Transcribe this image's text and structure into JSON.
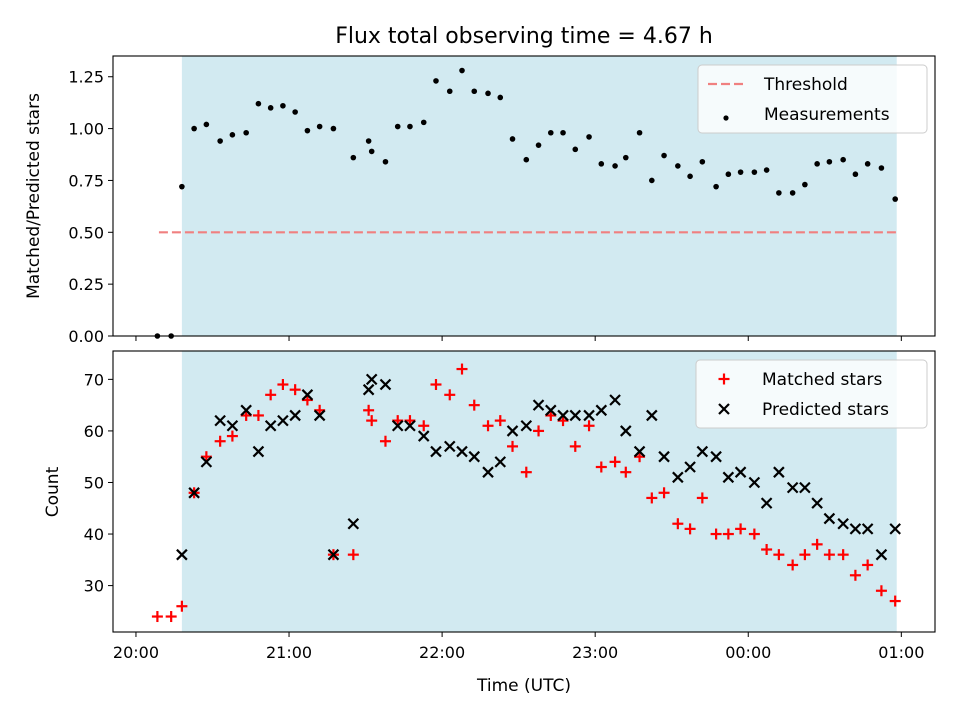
{
  "chart_data": {
    "type": "scatter",
    "title": "Flux total observing time = 4.67 h",
    "xlabel": "Time (UTC)",
    "x_units": "hours after 20:00 UTC",
    "xlim": [
      -0.15,
      5.22
    ],
    "x_ticks": [
      {
        "value": 0,
        "label": "20:00"
      },
      {
        "value": 1,
        "label": "21:00"
      },
      {
        "value": 2,
        "label": "22:00"
      },
      {
        "value": 3,
        "label": "23:00"
      },
      {
        "value": 4,
        "label": "00:00"
      },
      {
        "value": 5,
        "label": "01:00"
      }
    ],
    "observing_window": {
      "start": 0.3,
      "end": 4.97,
      "color": "#add8e6"
    },
    "panels": [
      {
        "ylabel": "Matched/Predicted stars",
        "ylim": [
          0,
          1.35
        ],
        "y_ticks": [
          "0.00",
          "0.25",
          "0.50",
          "0.75",
          "1.00",
          "1.25"
        ],
        "legend": {
          "placement": "top-right",
          "entries": [
            "Threshold",
            "Measurements"
          ]
        },
        "series": [
          {
            "name": "Threshold",
            "kind": "dashed-line",
            "color": "#f08080",
            "x": [
              0.15,
              4.97
            ],
            "y": [
              0.5,
              0.5
            ]
          },
          {
            "name": "Measurements",
            "kind": "dot",
            "color": "#000000",
            "x": [
              0.14,
              0.23,
              0.3,
              0.38,
              0.46,
              0.55,
              0.63,
              0.72,
              0.8,
              0.88,
              0.96,
              1.04,
              1.12,
              1.2,
              1.29,
              1.42,
              1.52,
              1.54,
              1.63,
              1.71,
              1.79,
              1.88,
              1.96,
              2.05,
              2.13,
              2.21,
              2.3,
              2.38,
              2.46,
              2.55,
              2.63,
              2.71,
              2.79,
              2.87,
              2.96,
              3.04,
              3.13,
              3.2,
              3.29,
              3.37,
              3.45,
              3.54,
              3.62,
              3.7,
              3.79,
              3.87,
              3.95,
              4.04,
              4.12,
              4.2,
              4.29,
              4.37,
              4.45,
              4.53,
              4.62,
              4.7,
              4.78,
              4.87,
              4.96
            ],
            "y": [
              0.0,
              0.0,
              0.72,
              1.0,
              1.02,
              0.94,
              0.97,
              0.98,
              1.12,
              1.1,
              1.11,
              1.08,
              0.99,
              1.01,
              1.0,
              0.86,
              0.94,
              0.89,
              0.84,
              1.01,
              1.01,
              1.03,
              1.23,
              1.18,
              1.28,
              1.18,
              1.17,
              1.15,
              0.95,
              0.85,
              0.92,
              0.98,
              0.98,
              0.9,
              0.96,
              0.83,
              0.82,
              0.86,
              0.98,
              0.75,
              0.87,
              0.82,
              0.77,
              0.84,
              0.72,
              0.78,
              0.79,
              0.79,
              0.8,
              0.69,
              0.69,
              0.73,
              0.83,
              0.84,
              0.85,
              0.78,
              0.83,
              0.81,
              0.66
            ]
          }
        ]
      },
      {
        "ylabel": "Count",
        "ylim": [
          21,
          75.5
        ],
        "y_ticks": [
          "30",
          "40",
          "50",
          "60",
          "70"
        ],
        "legend": {
          "placement": "top-right",
          "entries": [
            "Matched stars",
            "Predicted stars"
          ]
        },
        "series": [
          {
            "name": "Matched stars",
            "kind": "plus",
            "color": "#ff0000",
            "x": [
              0.14,
              0.23,
              0.3,
              0.38,
              0.46,
              0.55,
              0.63,
              0.72,
              0.8,
              0.88,
              0.96,
              1.04,
              1.12,
              1.2,
              1.29,
              1.42,
              1.52,
              1.54,
              1.63,
              1.71,
              1.79,
              1.88,
              1.96,
              2.05,
              2.13,
              2.21,
              2.3,
              2.38,
              2.46,
              2.55,
              2.63,
              2.71,
              2.79,
              2.87,
              2.96,
              3.04,
              3.13,
              3.2,
              3.29,
              3.37,
              3.45,
              3.54,
              3.62,
              3.7,
              3.79,
              3.87,
              3.95,
              4.04,
              4.12,
              4.2,
              4.29,
              4.37,
              4.45,
              4.53,
              4.62,
              4.7,
              4.78,
              4.87,
              4.96
            ],
            "y": [
              24,
              24,
              26,
              48,
              55,
              58,
              59,
              63,
              63,
              67,
              69,
              68,
              66,
              64,
              36,
              36,
              64,
              62,
              58,
              62,
              62,
              61,
              69,
              67,
              72,
              65,
              61,
              62,
              57,
              52,
              60,
              63,
              62,
              57,
              61,
              53,
              54,
              52,
              55,
              47,
              48,
              42,
              41,
              47,
              40,
              40,
              41,
              40,
              37,
              36,
              34,
              36,
              38,
              36,
              36,
              32,
              34,
              29,
              27
            ]
          },
          {
            "name": "Predicted stars",
            "kind": "x",
            "color": "#000000",
            "x": [
              0.3,
              0.38,
              0.46,
              0.55,
              0.63,
              0.72,
              0.8,
              0.88,
              0.96,
              1.04,
              1.12,
              1.2,
              1.29,
              1.42,
              1.52,
              1.54,
              1.63,
              1.71,
              1.79,
              1.88,
              1.96,
              2.05,
              2.13,
              2.21,
              2.3,
              2.38,
              2.46,
              2.55,
              2.63,
              2.71,
              2.79,
              2.87,
              2.96,
              3.04,
              3.13,
              3.2,
              3.29,
              3.37,
              3.45,
              3.54,
              3.62,
              3.7,
              3.79,
              3.87,
              3.95,
              4.04,
              4.12,
              4.2,
              4.29,
              4.37,
              4.45,
              4.53,
              4.62,
              4.7,
              4.78,
              4.87,
              4.96
            ],
            "y": [
              36,
              48,
              54,
              62,
              61,
              64,
              56,
              61,
              62,
              63,
              67,
              63,
              36,
              42,
              68,
              70,
              69,
              61,
              61,
              59,
              56,
              57,
              56,
              55,
              52,
              54,
              60,
              61,
              65,
              64,
              63,
              63,
              63,
              64,
              66,
              60,
              56,
              63,
              55,
              51,
              53,
              56,
              55,
              51,
              52,
              50,
              46,
              52,
              49,
              49,
              46,
              43,
              42,
              41,
              41,
              36,
              41
            ]
          }
        ]
      }
    ]
  }
}
